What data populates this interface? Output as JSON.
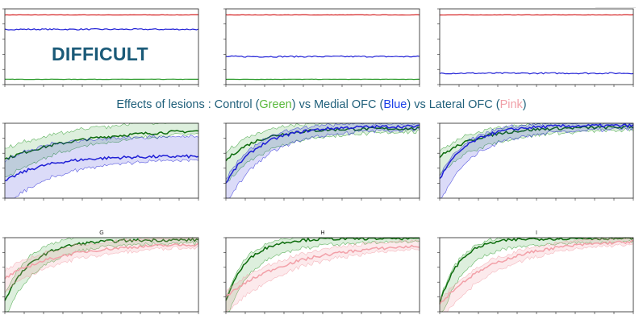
{
  "banner": {
    "prefix": "Effects of lesions : Control (",
    "control_word": "Green",
    "mid1": ") vs Medial OFC (",
    "medial_word": "Blue",
    "mid2": ") vs Lateral OFC (",
    "lateral_word": "Pink",
    "suffix": ")"
  },
  "difficult_label": "DIFFICULT",
  "colors": {
    "red": "#d62728",
    "blue": "#1f1fd6",
    "green": "#2a9a2a",
    "dark_green": "#0c6b0c",
    "pink": "#f2a0a8",
    "banner_text": "#1f5f7a",
    "green_word": "#58b83a",
    "blue_word": "#1a40e8",
    "pink_word": "#f0a0a8"
  },
  "chart_data": [
    {
      "id": "A",
      "type": "line",
      "title": "",
      "xlim": [
        0,
        100
      ],
      "ylim": [
        0,
        1
      ],
      "series": [
        {
          "color": "red",
          "values_level": 0.92,
          "noise": 0.002
        },
        {
          "color": "blue",
          "values_level": 0.73,
          "noise": 0.008
        },
        {
          "color": "green",
          "values_level": 0.07,
          "noise": 0.002
        }
      ]
    },
    {
      "id": "B",
      "type": "line",
      "title": "",
      "xlim": [
        0,
        100
      ],
      "ylim": [
        0,
        1
      ],
      "series": [
        {
          "color": "red",
          "values_level": 0.92,
          "noise": 0.002
        },
        {
          "color": "blue",
          "values_level": 0.37,
          "noise": 0.009
        },
        {
          "color": "green",
          "values_level": 0.07,
          "noise": 0.002
        }
      ]
    },
    {
      "id": "C",
      "type": "line",
      "title": "",
      "xlim": [
        0,
        100
      ],
      "ylim": [
        0,
        1
      ],
      "series": [
        {
          "color": "red",
          "values_level": 0.92,
          "noise": 0.002
        },
        {
          "color": "blue",
          "values_level": 0.15,
          "noise": 0.009
        }
      ]
    },
    {
      "id": "D",
      "type": "area",
      "title": "",
      "xlim": [
        0,
        100
      ],
      "ylim": [
        0,
        1
      ],
      "series": [
        {
          "color": "green",
          "start": 0.52,
          "end": 0.93,
          "rate": 0.025,
          "band_lo": 0.22,
          "band_hi": 0.14
        },
        {
          "color": "blue",
          "start": 0.22,
          "end": 0.56,
          "rate": 0.05,
          "band_lo": 0.32,
          "band_hi": 0.26
        }
      ]
    },
    {
      "id": "E",
      "type": "area",
      "title": "",
      "xlim": [
        0,
        100
      ],
      "ylim": [
        0,
        1
      ],
      "series": [
        {
          "color": "green",
          "start": 0.5,
          "end": 0.93,
          "rate": 0.06,
          "band_lo": 0.28,
          "band_hi": 0.1
        },
        {
          "color": "blue",
          "start": 0.2,
          "end": 0.96,
          "rate": 0.06,
          "band_lo": 0.28,
          "band_hi": 0.05
        }
      ]
    },
    {
      "id": "F",
      "type": "area",
      "title": "",
      "xlim": [
        0,
        100
      ],
      "ylim": [
        0,
        1
      ],
      "series": [
        {
          "color": "green",
          "start": 0.55,
          "end": 0.95,
          "rate": 0.05,
          "band_lo": 0.2,
          "band_hi": 0.08
        },
        {
          "color": "blue",
          "start": 0.25,
          "end": 0.97,
          "rate": 0.07,
          "band_lo": 0.3,
          "band_hi": 0.04
        }
      ]
    },
    {
      "id": "G",
      "type": "area",
      "title": "G",
      "xlim": [
        0,
        100
      ],
      "ylim": [
        0,
        1
      ],
      "series": [
        {
          "color": "green",
          "start": 0.15,
          "end": 0.97,
          "rate": 0.07,
          "band_lo": 0.22,
          "band_hi": 0.1
        },
        {
          "color": "pink",
          "start": 0.45,
          "end": 0.92,
          "rate": 0.035,
          "band_lo": 0.15,
          "band_hi": 0.1
        }
      ]
    },
    {
      "id": "H",
      "type": "area",
      "title": "H",
      "xlim": [
        0,
        100
      ],
      "ylim": [
        0,
        1
      ],
      "series": [
        {
          "color": "green",
          "start": 0.15,
          "end": 0.99,
          "rate": 0.09,
          "band_lo": 0.25,
          "band_hi": 0.05
        },
        {
          "color": "pink",
          "start": 0.2,
          "end": 0.92,
          "rate": 0.03,
          "band_lo": 0.2,
          "band_hi": 0.08
        }
      ]
    },
    {
      "id": "I",
      "type": "area",
      "title": "I",
      "xlim": [
        0,
        100
      ],
      "ylim": [
        0,
        1
      ],
      "series": [
        {
          "color": "green",
          "start": 0.1,
          "end": 0.99,
          "rate": 0.1,
          "band_lo": 0.25,
          "band_hi": 0.04
        },
        {
          "color": "pink",
          "start": 0.1,
          "end": 0.97,
          "rate": 0.035,
          "band_lo": 0.2,
          "band_hi": 0.06
        }
      ]
    }
  ]
}
